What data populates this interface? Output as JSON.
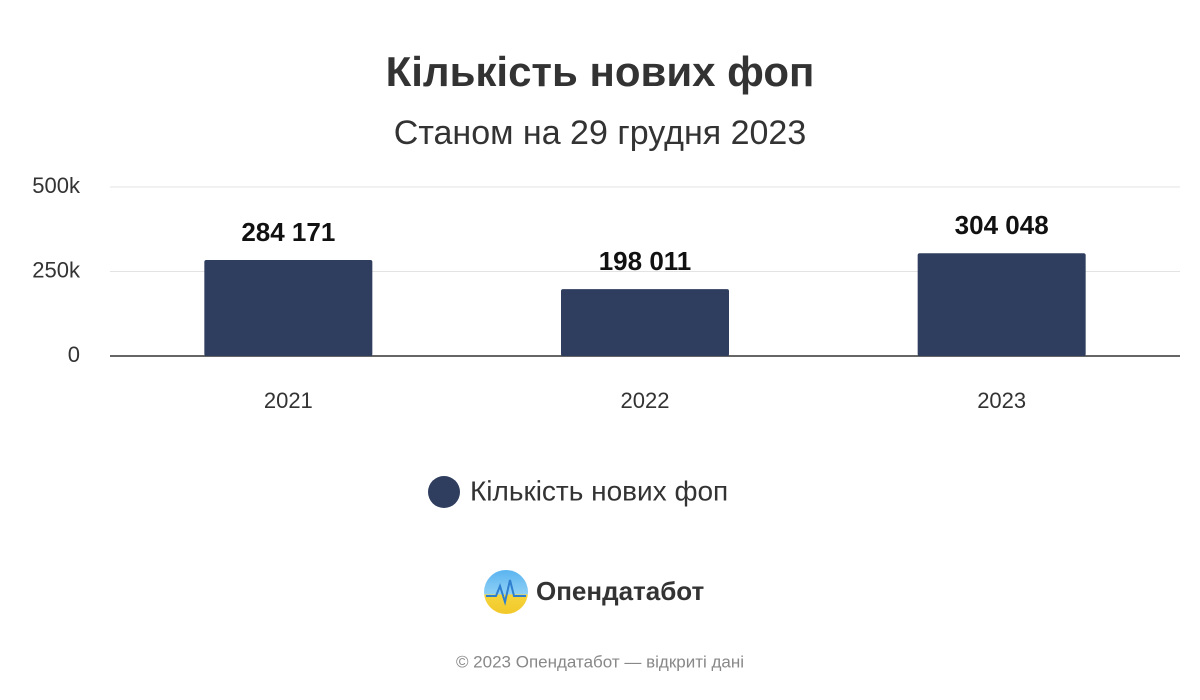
{
  "chart_data": {
    "type": "bar",
    "title": "Кількість нових фоп",
    "subtitle": "Станом на 29 грудня 2023",
    "categories": [
      "2021",
      "2022",
      "2023"
    ],
    "series": [
      {
        "name": "Кількість нових фоп",
        "color": "#2f3d5e",
        "values": [
          284171,
          198011,
          304048
        ],
        "value_labels": [
          "284 171",
          "198 011",
          "304 048"
        ]
      }
    ],
    "ylim": [
      0,
      500000
    ],
    "yticks": [
      0,
      {
        "value": 250000,
        "label": "250k"
      },
      {
        "value": 500000,
        "label": "500k"
      }
    ],
    "grid": true,
    "legend": "bottom"
  },
  "brand": "Опендатабот",
  "footer": "© 2023 Опендатабот — відкриті дані"
}
